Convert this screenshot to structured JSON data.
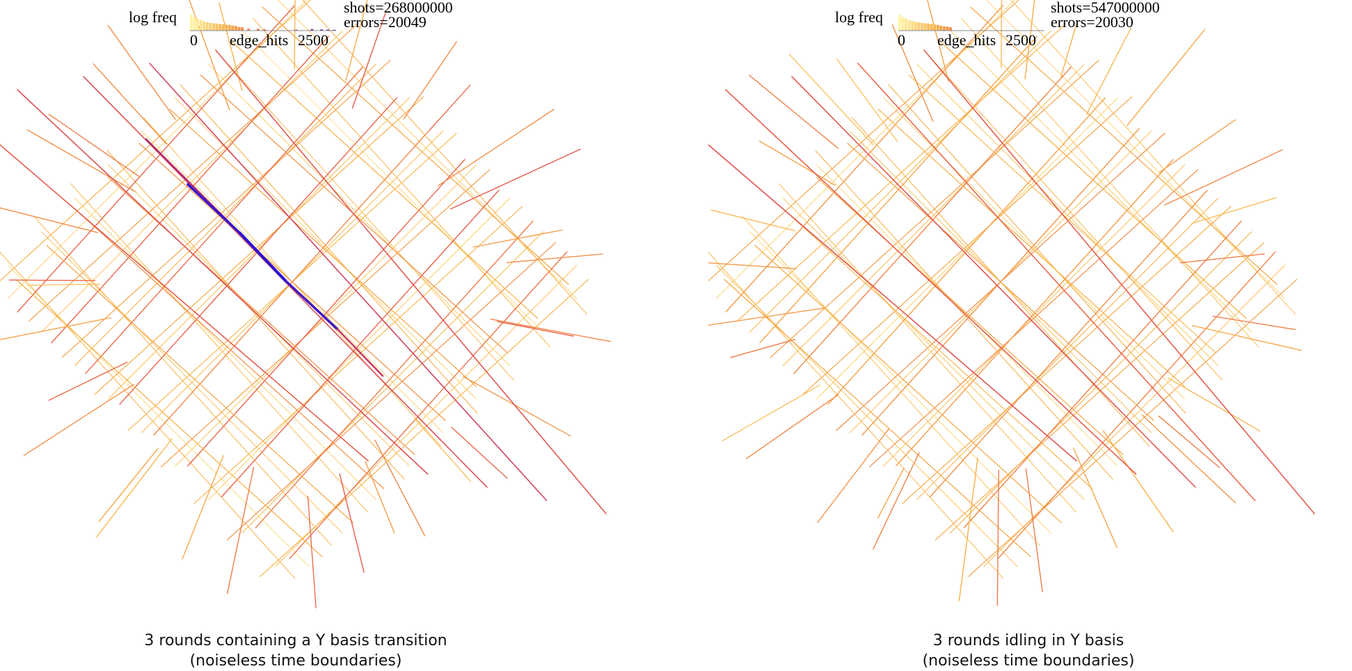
{
  "colors": {
    "low": "#fff4a8",
    "mid": "#f7b04a",
    "high": "#e8614a",
    "hot": "#c0326a",
    "max": "#2a10d8",
    "axis": "#888888"
  },
  "panels": [
    {
      "id": "left",
      "histogram": {
        "ylabel": "log freq",
        "xmin_label": "0",
        "xlabel": "edge_hits",
        "xmax_label": "2500",
        "bin_log_heights": [
          0.95,
          0.8,
          0.72,
          0.62,
          0.56,
          0.5,
          0.46,
          0.44,
          0.42,
          0.4,
          0.38,
          0.35,
          0.34,
          0.3,
          0.28,
          0.22,
          0.2,
          0,
          0.12,
          0,
          0,
          0.1,
          0,
          0.08,
          0,
          0,
          0,
          0,
          0,
          0,
          0,
          0,
          0,
          0.06,
          0,
          0,
          0,
          0,
          0.09,
          0,
          0,
          0.07,
          0,
          0.06,
          0,
          0.05
        ]
      },
      "stats": {
        "shots": "shots=268000000",
        "errors": "errors=20049"
      },
      "caption": {
        "line1": "3 rounds containing a Y basis transition",
        "line2": "(noiseless time boundaries)"
      },
      "boundary_intensity": 0.55,
      "chain_intensity": 0.35,
      "hot_path": true
    },
    {
      "id": "right",
      "histogram": {
        "ylabel": "log freq",
        "xmin_label": "0",
        "xlabel": "edge_hits",
        "xmax_label": "2500",
        "bin_log_heights": [
          0.95,
          0.82,
          0.72,
          0.64,
          0.58,
          0.52,
          0.5,
          0.46,
          0.44,
          0.42,
          0.4,
          0.36,
          0.34,
          0.3,
          0.26,
          0.24,
          0.2,
          0,
          0,
          0,
          0,
          0,
          0,
          0,
          0,
          0,
          0,
          0,
          0,
          0,
          0,
          0,
          0,
          0,
          0,
          0,
          0,
          0,
          0,
          0,
          0,
          0,
          0,
          0,
          0,
          0
        ]
      },
      "stats": {
        "shots": "shots=547000000",
        "errors": "errors=20030"
      },
      "caption": {
        "line1": "3 rounds idling in Y basis",
        "line2": "(noiseless time boundaries)"
      },
      "boundary_intensity": 0.42,
      "chain_intensity": 0.28,
      "hot_path": false
    }
  ]
}
